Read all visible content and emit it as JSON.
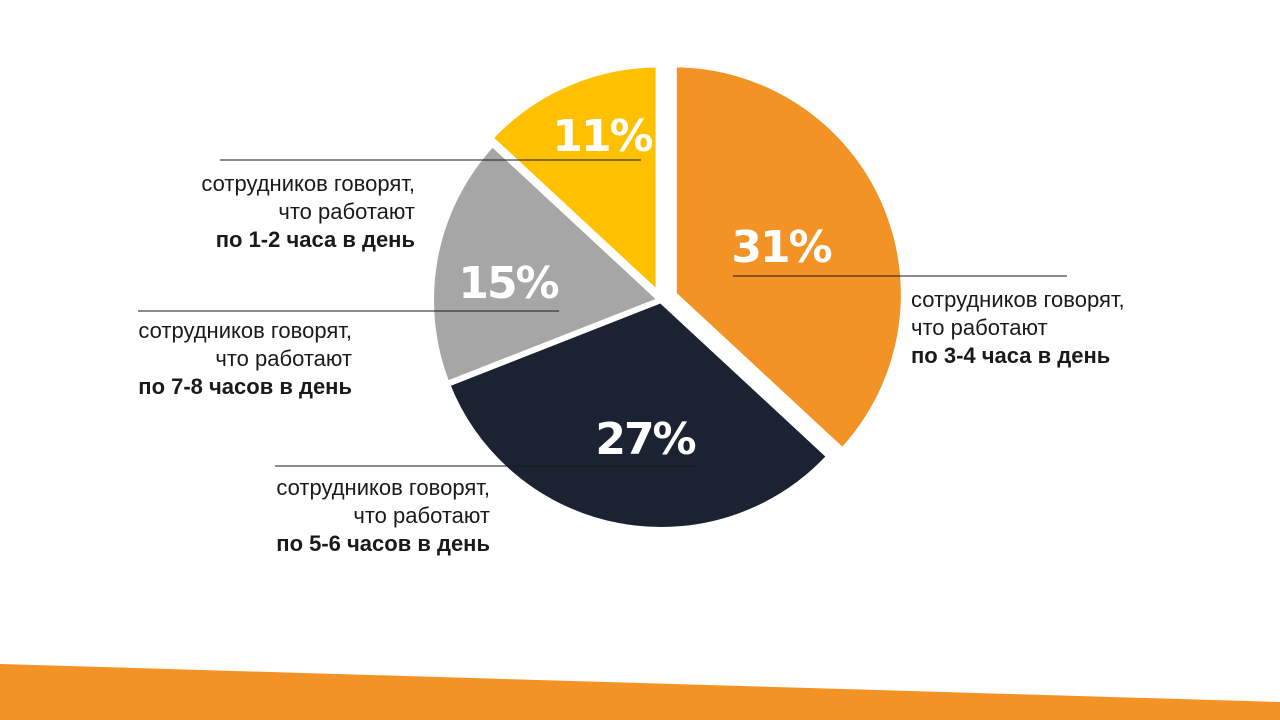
{
  "chart_data": {
    "type": "pie",
    "title": "",
    "slices": [
      {
        "label_line1": "сотрудников говорят,",
        "label_line2": "что работают",
        "label_line3": "по 3-4 часа в день",
        "value": 31,
        "value_label": "31%",
        "color": "#F39325"
      },
      {
        "label_line1": "сотрудников говорят,",
        "label_line2": "что работают",
        "label_line3": "по 5-6 часов в день",
        "value": 27,
        "value_label": "27%",
        "color": "#1B2333"
      },
      {
        "label_line1": "сотрудников говорят,",
        "label_line2": "что работают",
        "label_line3": "по 7-8 часов в день",
        "value": 15,
        "value_label": "15%",
        "color": "#A6A6A6"
      },
      {
        "label_line1": "сотрудников говорят,",
        "label_line2": "что работают",
        "label_line3": "по 1-2 часа в день",
        "value": 11,
        "value_label": "11%",
        "color": "#FFC000"
      }
    ]
  },
  "colors": {
    "footer_band": "#F39325",
    "leader_line": "#1a1a1a"
  }
}
